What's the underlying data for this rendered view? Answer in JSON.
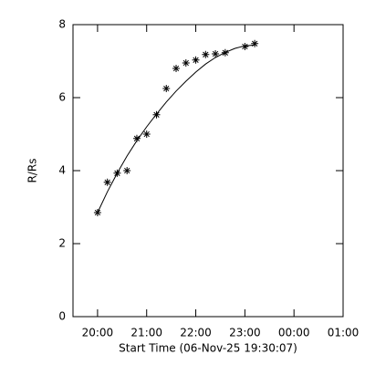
{
  "chart_data": {
    "type": "scatter",
    "color": "#000000",
    "x": [
      20.0,
      20.2,
      20.4,
      20.6,
      20.8,
      21.0,
      21.2,
      21.4,
      21.6,
      21.8,
      22.0,
      22.2,
      22.4,
      22.6,
      23.0,
      23.2
    ],
    "values": [
      2.85,
      3.68,
      3.93,
      4.0,
      4.88,
      5.0,
      5.53,
      6.25,
      6.8,
      6.95,
      7.03,
      7.18,
      7.2,
      7.23,
      7.4,
      7.48
    ],
    "fit": {
      "x": [
        20.0,
        20.2,
        20.4,
        20.6,
        20.8,
        21.0,
        21.2,
        21.4,
        21.6,
        21.8,
        22.0,
        22.2,
        22.4,
        22.6,
        22.8,
        23.0,
        23.2
      ],
      "values": [
        2.85,
        3.42,
        3.93,
        4.4,
        4.82,
        5.2,
        5.55,
        5.88,
        6.18,
        6.45,
        6.7,
        6.92,
        7.1,
        7.24,
        7.35,
        7.42,
        7.44
      ]
    },
    "xlabel": "Start Time (06-Nov-25 19:30:07)",
    "ylabel": "R/Rs",
    "xlim": [
      19.5,
      25.0
    ],
    "ylim": [
      0,
      8
    ],
    "xticks": [
      {
        "value": 20,
        "label": "20:00"
      },
      {
        "value": 21,
        "label": "21:00"
      },
      {
        "value": 22,
        "label": "22:00"
      },
      {
        "value": 23,
        "label": "23:00"
      },
      {
        "value": 24,
        "label": "00:00"
      },
      {
        "value": 25,
        "label": "01:00"
      }
    ],
    "yticks": [
      0,
      2,
      4,
      6,
      8
    ]
  }
}
